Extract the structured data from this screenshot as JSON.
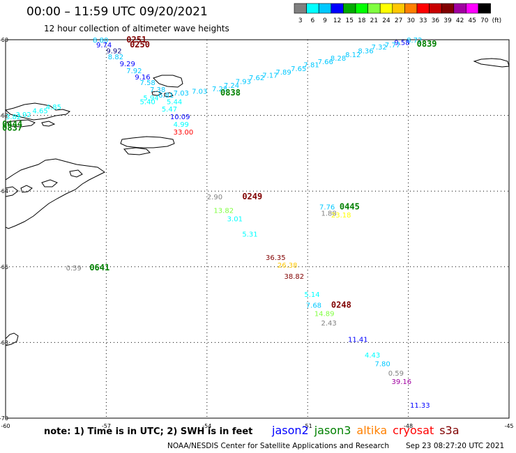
{
  "header": {
    "title": "00:00 – 11:59 UTC 09/20/2021",
    "subtitle": "12 hour collection of altimeter wave heights"
  },
  "legend": {
    "unit": "(ft)",
    "bins": [
      {
        "label": "3",
        "color": "#808080"
      },
      {
        "label": "6",
        "color": "#00ffff"
      },
      {
        "label": "9",
        "color": "#00c8ff"
      },
      {
        "label": "12",
        "color": "#0000ff"
      },
      {
        "label": "15",
        "color": "#00aa00"
      },
      {
        "label": "18",
        "color": "#00ff00"
      },
      {
        "label": "21",
        "color": "#80ff40"
      },
      {
        "label": "24",
        "color": "#ffff00"
      },
      {
        "label": "27",
        "color": "#ffc800"
      },
      {
        "label": "30",
        "color": "#ff8000"
      },
      {
        "label": "33",
        "color": "#ff0000"
      },
      {
        "label": "36",
        "color": "#c80000"
      },
      {
        "label": "39",
        "color": "#800000"
      },
      {
        "label": "42",
        "color": "#a000a0"
      },
      {
        "label": "45",
        "color": "#ff00ff"
      },
      {
        "label": "70",
        "color": "#000000"
      }
    ]
  },
  "map": {
    "lon_ticks": [
      "-60",
      "-57",
      "-54",
      "-51",
      "-48",
      "-45"
    ],
    "lat_ticks": [
      "-60",
      "-62",
      "-64",
      "-66",
      "-68",
      "-70"
    ]
  },
  "chart_data": {
    "type": "scatter",
    "lon_range": [
      -60,
      -45
    ],
    "lat_range": [
      -70,
      -60
    ],
    "wave_heights": [
      {
        "value": "8.72",
        "lon": -48.05,
        "lat": -60.07,
        "color": "#00c8ff"
      },
      {
        "value": "9.58",
        "lon": -48.42,
        "lat": -60.14,
        "color": "#0000ff"
      },
      {
        "value": "7.77",
        "lon": -48.7,
        "lat": -60.2,
        "color": "#00c8ff"
      },
      {
        "value": "7.32",
        "lon": -49.1,
        "lat": -60.26,
        "color": "#00c8ff"
      },
      {
        "value": "8.36",
        "lon": -49.5,
        "lat": -60.36,
        "color": "#00c8ff"
      },
      {
        "value": "8.12",
        "lon": -49.88,
        "lat": -60.46,
        "color": "#00c8ff"
      },
      {
        "value": "8.28",
        "lon": -50.32,
        "lat": -60.55,
        "color": "#00c8ff"
      },
      {
        "value": "7.66",
        "lon": -50.7,
        "lat": -60.64,
        "color": "#00c8ff"
      },
      {
        "value": "7.81",
        "lon": -51.12,
        "lat": -60.73,
        "color": "#00c8ff"
      },
      {
        "value": "7.65",
        "lon": -51.5,
        "lat": -60.83,
        "color": "#00c8ff"
      },
      {
        "value": "7.89",
        "lon": -51.95,
        "lat": -60.92,
        "color": "#00c8ff"
      },
      {
        "value": "7.17",
        "lon": -52.35,
        "lat": -61.0,
        "color": "#00c8ff"
      },
      {
        "value": "7.62",
        "lon": -52.75,
        "lat": -61.07,
        "color": "#00c8ff"
      },
      {
        "value": "7.93",
        "lon": -53.15,
        "lat": -61.17,
        "color": "#00c8ff"
      },
      {
        "value": "7.24",
        "lon": -53.5,
        "lat": -61.27,
        "color": "#00c8ff"
      },
      {
        "value": "7.28",
        "lon": -53.85,
        "lat": -61.36,
        "color": "#00c8ff"
      },
      {
        "value": "7.03",
        "lon": -54.45,
        "lat": -61.43,
        "color": "#00c8ff"
      },
      {
        "value": "7.03",
        "lon": -55.0,
        "lat": -61.47,
        "color": "#00c8ff"
      },
      {
        "value": "6.81",
        "lon": -55.45,
        "lat": -61.53,
        "color": "#00c8ff"
      },
      {
        "value": "5.94",
        "lon": -55.9,
        "lat": -61.6,
        "color": "#00ffff"
      },
      {
        "value": "5.44",
        "lon": -55.2,
        "lat": -61.7,
        "color": "#00ffff"
      },
      {
        "value": "5.40",
        "lon": -56.0,
        "lat": -61.7,
        "color": "#00ffff"
      },
      {
        "value": "5.47",
        "lon": -55.35,
        "lat": -61.9,
        "color": "#00ffff"
      },
      {
        "value": "10.09",
        "lon": -55.1,
        "lat": -62.1,
        "color": "#0000ff"
      },
      {
        "value": "4.99",
        "lon": -55.0,
        "lat": -62.3,
        "color": "#00ffff"
      },
      {
        "value": "33.00",
        "lon": -55.0,
        "lat": -62.5,
        "color": "#ff0000"
      },
      {
        "value": "4.85",
        "lon": -58.8,
        "lat": -61.84,
        "color": "#00ffff"
      },
      {
        "value": "4.65",
        "lon": -59.2,
        "lat": -61.94,
        "color": "#00ffff"
      },
      {
        "value": "3.92",
        "lon": -59.7,
        "lat": -62.04,
        "color": "#00ffff"
      },
      {
        "value": "3.82",
        "lon": -60.0,
        "lat": -62.1,
        "color": "#00ffff"
      },
      {
        "value": "4.68",
        "lon": -60.8,
        "lat": -62.3,
        "color": "#00ffff"
      },
      {
        "value": "3.79",
        "lon": -61.0,
        "lat": -62.22,
        "color": "#00ffff"
      },
      {
        "value": "4.47",
        "lon": -61.0,
        "lat": -62.37,
        "color": "#00ffff"
      },
      {
        "value": "8.80",
        "lon": -57.4,
        "lat": -60.07,
        "color": "#00c8ff"
      },
      {
        "value": "9.74",
        "lon": -57.3,
        "lat": -60.2,
        "color": "#0000ff"
      },
      {
        "value": "9.92",
        "lon": -57.0,
        "lat": -60.36,
        "color": "#000080"
      },
      {
        "value": "8.82",
        "lon": -56.95,
        "lat": -60.52,
        "color": "#00c8ff"
      },
      {
        "value": "9.29",
        "lon": -56.6,
        "lat": -60.7,
        "color": "#0000ff"
      },
      {
        "value": "7.92",
        "lon": -56.4,
        "lat": -60.88,
        "color": "#00c8ff"
      },
      {
        "value": "9.16",
        "lon": -56.15,
        "lat": -61.05,
        "color": "#0000ff"
      },
      {
        "value": "7.58",
        "lon": -56.0,
        "lat": -61.2,
        "color": "#00c8ff"
      },
      {
        "value": "7.38",
        "lon": -55.7,
        "lat": -61.38,
        "color": "#00c8ff"
      },
      {
        "value": "2.90",
        "lon": -54.0,
        "lat": -64.22,
        "color": "#808080"
      },
      {
        "value": "13.82",
        "lon": -53.8,
        "lat": -64.58,
        "color": "#80ff40"
      },
      {
        "value": "3.01",
        "lon": -53.4,
        "lat": -64.8,
        "color": "#00ffff"
      },
      {
        "value": "5.31",
        "lon": -52.95,
        "lat": -65.2,
        "color": "#00ffff"
      },
      {
        "value": "7.76",
        "lon": -50.65,
        "lat": -64.48,
        "color": "#00c8ff"
      },
      {
        "value": "1.88",
        "lon": -50.6,
        "lat": -64.65,
        "color": "#808080"
      },
      {
        "value": "23.18",
        "lon": -50.3,
        "lat": -64.7,
        "color": "#ffff00"
      },
      {
        "value": "36.35",
        "lon": -52.25,
        "lat": -65.82,
        "color": "#800000"
      },
      {
        "value": "26.38",
        "lon": -51.9,
        "lat": -66.02,
        "color": "#ffc800"
      },
      {
        "value": "38.82",
        "lon": -51.7,
        "lat": -66.32,
        "color": "#800000"
      },
      {
        "value": "0.59",
        "lon": -58.2,
        "lat": -66.1,
        "color": "#808080"
      },
      {
        "value": "5.14",
        "lon": -51.1,
        "lat": -66.8,
        "color": "#00ffff"
      },
      {
        "value": "7.68",
        "lon": -51.05,
        "lat": -67.08,
        "color": "#00c8ff"
      },
      {
        "value": "14.89",
        "lon": -50.8,
        "lat": -67.3,
        "color": "#80ff40"
      },
      {
        "value": "2.43",
        "lon": -50.6,
        "lat": -67.55,
        "color": "#808080"
      },
      {
        "value": "11.41",
        "lon": -49.8,
        "lat": -67.98,
        "color": "#0000ff"
      },
      {
        "value": "4.43",
        "lon": -49.3,
        "lat": -68.4,
        "color": "#00ffff"
      },
      {
        "value": "7.80",
        "lon": -49.0,
        "lat": -68.63,
        "color": "#00c8ff"
      },
      {
        "value": "0.59",
        "lon": -48.6,
        "lat": -68.88,
        "color": "#808080"
      },
      {
        "value": "39.16",
        "lon": -48.5,
        "lat": -69.1,
        "color": "#a000a0"
      },
      {
        "value": "11.33",
        "lon": -47.95,
        "lat": -69.72,
        "color": "#0000ff"
      }
    ],
    "pass_times": [
      {
        "value": "0251",
        "lon": -56.4,
        "lat": -60.07,
        "color": "#800000"
      },
      {
        "value": "0250",
        "lon": -56.3,
        "lat": -60.2,
        "color": "#800000"
      },
      {
        "value": "0839",
        "lon": -47.75,
        "lat": -60.18,
        "color": "#008000"
      },
      {
        "value": "0838",
        "lon": -53.6,
        "lat": -61.47,
        "color": "#008000"
      },
      {
        "value": "0444",
        "lon": -60.1,
        "lat": -62.3,
        "color": "#008000"
      },
      {
        "value": "0837",
        "lon": -60.1,
        "lat": -62.4,
        "color": "#008000"
      },
      {
        "value": "0249",
        "lon": -52.95,
        "lat": -64.22,
        "color": "#800000"
      },
      {
        "value": "0445",
        "lon": -50.05,
        "lat": -64.48,
        "color": "#008000"
      },
      {
        "value": "0641",
        "lon": -57.5,
        "lat": -66.1,
        "color": "#008000"
      },
      {
        "value": "0248",
        "lon": -50.3,
        "lat": -67.08,
        "color": "#800000"
      }
    ]
  },
  "footer": {
    "note": "note: 1) Time is in UTC; 2) SWH is in feet",
    "satellites": [
      {
        "name": "jason2",
        "color": "#0000ff"
      },
      {
        "name": "jason3",
        "color": "#008000"
      },
      {
        "name": "altika",
        "color": "#ff8000"
      },
      {
        "name": "cryosat",
        "color": "#ff0000"
      },
      {
        "name": "s3a",
        "color": "#800000"
      }
    ],
    "credit": "NOAA/NESDIS Center for Satellite Applications and Research",
    "timestamp": "Sep 23 08:27:20 UTC 2021"
  }
}
